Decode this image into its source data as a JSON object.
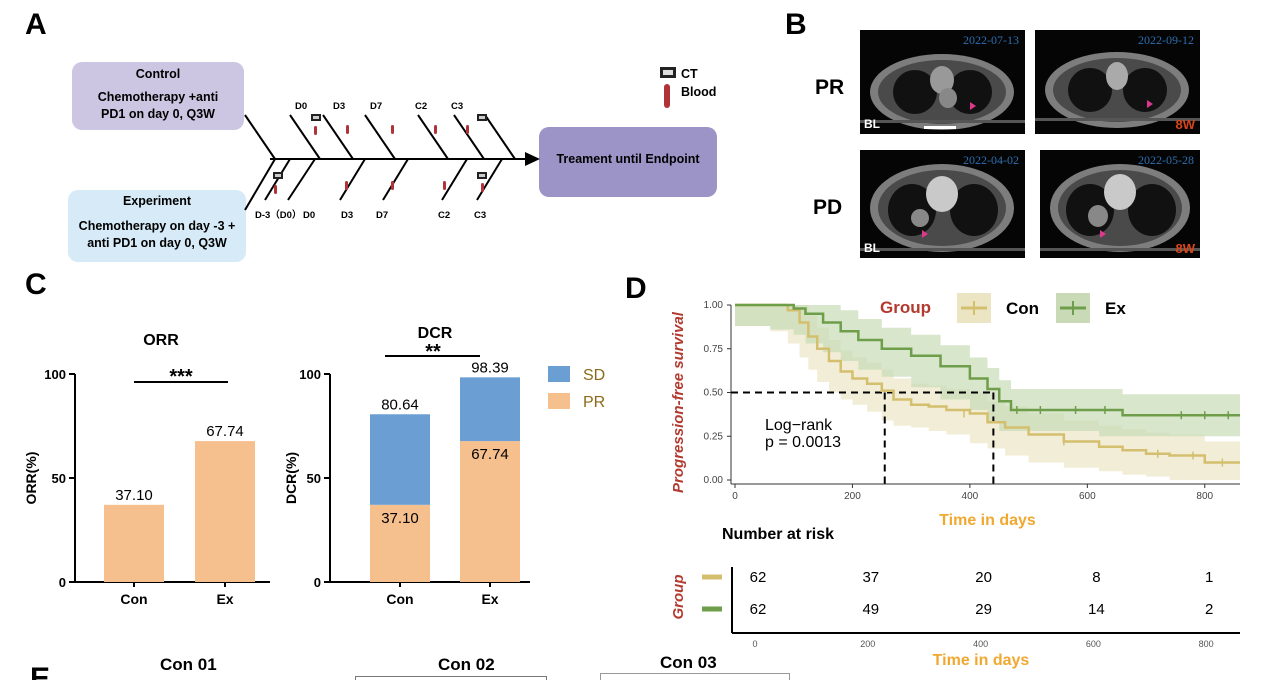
{
  "panels": {
    "a": "A",
    "b": "B",
    "c": "C",
    "d": "D",
    "e": "E"
  },
  "panel_a": {
    "control_title": "Control",
    "control_line1": "Chemotherapy +anti",
    "control_line2": "PD1 on day 0, Q3W",
    "experiment_title": "Experiment",
    "experiment_line1": "Chemotherapy on day -3 +",
    "experiment_line2": "anti PD1 on day 0, Q3W",
    "endpoint": "Treament until Endpoint",
    "legend_ct": "CT",
    "legend_blood": "Blood",
    "top_days": [
      "D0",
      "D3",
      "D7",
      "C2",
      "C3"
    ],
    "bottom_days": [
      "D-3（D0）",
      "D0",
      "D3",
      "D7",
      "C2",
      "C3"
    ],
    "colors": {
      "control": "#cdc6e2",
      "experiment": "#d6ebf7",
      "endpoint": "#9c93c7",
      "blood": "#b1333a"
    }
  },
  "panel_b": {
    "row_pr": "PR",
    "row_pd": "PD",
    "images": [
      {
        "date": "2022-07-13",
        "tag": "BL"
      },
      {
        "date": "2022-09-12",
        "tag": "8W"
      },
      {
        "date": "2022-04-02",
        "tag": "BL"
      },
      {
        "date": "2022-05-28",
        "tag": "8W"
      }
    ]
  },
  "chart_data": [
    {
      "type": "bar",
      "title": "ORR",
      "categories": [
        "Con",
        "Ex"
      ],
      "values": [
        37.1,
        67.74
      ],
      "value_labels": [
        "37.10",
        "67.74"
      ],
      "ylabel": "ORR(%)",
      "ylim": [
        0,
        100
      ],
      "yticks": [
        "0",
        "50",
        "100"
      ],
      "significance": "***",
      "color": "#f6bf8e"
    },
    {
      "type": "bar",
      "title": "DCR",
      "categories": [
        "Con",
        "Ex"
      ],
      "series": [
        {
          "name": "PR",
          "values": [
            37.1,
            67.74
          ],
          "labels": [
            "37.10",
            "67.74"
          ],
          "color": "#f6bf8e"
        },
        {
          "name": "SD",
          "values": [
            43.54,
            30.65
          ],
          "color": "#6b9fd4"
        }
      ],
      "totals": [
        80.64,
        98.39
      ],
      "total_labels": [
        "80.64",
        "98.39"
      ],
      "ylabel": "DCR(%)",
      "ylim": [
        0,
        100
      ],
      "yticks": [
        "0",
        "50",
        "100"
      ],
      "significance": "**",
      "legend": [
        "SD",
        "PR"
      ]
    },
    {
      "type": "line",
      "title": "",
      "ylabel": "Progression-free survival",
      "xlabel": "Time in days",
      "xlim": [
        0,
        860
      ],
      "ylim": [
        0,
        1
      ],
      "xticks": [
        "0",
        "200",
        "400",
        "600",
        "800"
      ],
      "yticks": [
        "0.00",
        "0.25",
        "0.50",
        "0.75",
        "1.00"
      ],
      "legend_title": "Group",
      "annotation_line1": "Log−rank",
      "annotation_line2": "p = 0.0013",
      "median_days": [
        255,
        440
      ],
      "series": [
        {
          "name": "Con",
          "color": "#d4bf6e",
          "band": "#ece5c4",
          "x": [
            0,
            60,
            90,
            110,
            125,
            140,
            160,
            180,
            200,
            225,
            250,
            270,
            300,
            330,
            360,
            400,
            430,
            460,
            500,
            560,
            620,
            660,
            700,
            740,
            800,
            860
          ],
          "y": [
            1.0,
            1.0,
            0.97,
            0.9,
            0.82,
            0.75,
            0.68,
            0.62,
            0.58,
            0.55,
            0.51,
            0.46,
            0.43,
            0.42,
            0.4,
            0.38,
            0.33,
            0.3,
            0.26,
            0.22,
            0.19,
            0.17,
            0.15,
            0.14,
            0.1,
            0.1
          ]
        },
        {
          "name": "Ex",
          "color": "#6f9e4b",
          "band": "#c8dbb6",
          "x": [
            0,
            60,
            100,
            120,
            150,
            180,
            210,
            250,
            300,
            350,
            400,
            430,
            450,
            470,
            500,
            560,
            620,
            660,
            700,
            860
          ],
          "y": [
            1.0,
            1.0,
            0.98,
            0.95,
            0.9,
            0.85,
            0.8,
            0.75,
            0.71,
            0.65,
            0.58,
            0.52,
            0.45,
            0.4,
            0.4,
            0.4,
            0.4,
            0.37,
            0.37,
            0.37
          ]
        }
      ]
    }
  ],
  "risk_table": {
    "title": "Number at risk",
    "ylabel": "Group",
    "xlabel": "Time in days",
    "xticks": [
      "0",
      "200",
      "400",
      "600",
      "800"
    ],
    "rows": [
      {
        "group": "Con",
        "color": "#d4bf6e",
        "values": [
          "62",
          "37",
          "20",
          "8",
          "1"
        ]
      },
      {
        "group": "Ex",
        "color": "#6f9e4b",
        "values": [
          "62",
          "49",
          "29",
          "14",
          "2"
        ]
      }
    ]
  },
  "panel_e": {
    "titles": [
      "Con 01",
      "Con 02",
      "Con 03"
    ]
  }
}
